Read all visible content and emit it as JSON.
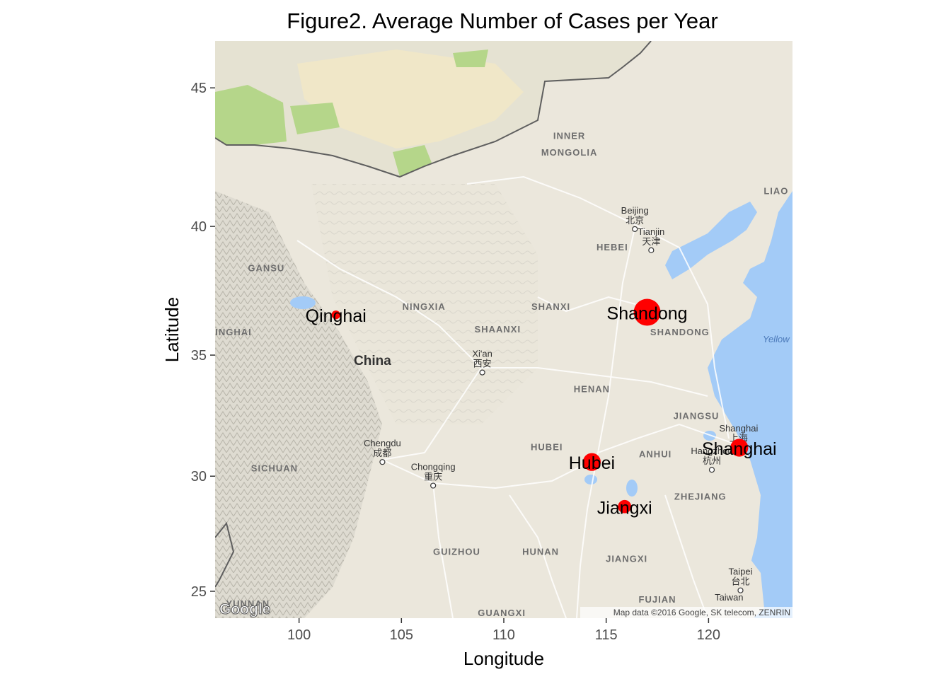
{
  "figure": {
    "title": "Figure2. Average Number of Cases per Year",
    "x_axis_title": "Longitude",
    "y_axis_title": "Latitude"
  },
  "map": {
    "lon_range": [
      95.9,
      124.1
    ],
    "lat_range": [
      23.8,
      46.6
    ],
    "x_ticks": [
      100,
      105,
      110,
      115,
      120
    ],
    "y_ticks": [
      25,
      30,
      35,
      40,
      45
    ],
    "attribution": "Map data ©2016 Google, SK telecom, ZENRIN",
    "logo_text": "Google",
    "country_label": "China",
    "sea_label": "Yellow",
    "colors": {
      "land": "#ebe7dc",
      "desert": "#f2e9c6",
      "green": "#b5d68a",
      "water": "#a3cbf7",
      "border": "#5f5f5f",
      "road": "#ffffff",
      "point": "#ff0000"
    },
    "region_labels": [
      {
        "text": "INNER",
        "lon": 113.2,
        "lat": 43.2
      },
      {
        "text": "MONGOLIA",
        "lon": 113.2,
        "lat": 42.6
      },
      {
        "text": "LIAO",
        "lon": 123.3,
        "lat": 41.2
      },
      {
        "text": "HEBEI",
        "lon": 115.3,
        "lat": 39.1
      },
      {
        "text": "GANSU",
        "lon": 98.4,
        "lat": 38.3
      },
      {
        "text": "NINGXIA",
        "lon": 106.1,
        "lat": 36.8
      },
      {
        "text": "SHANXI",
        "lon": 112.3,
        "lat": 36.8
      },
      {
        "text": "SHAANXI",
        "lon": 109.7,
        "lat": 35.9
      },
      {
        "text": "SHANDONG",
        "lon": 118.6,
        "lat": 35.8
      },
      {
        "text": "INGHAI",
        "lon": 96.8,
        "lat": 35.8
      },
      {
        "text": "HENAN",
        "lon": 114.3,
        "lat": 33.5
      },
      {
        "text": "JIANGSU",
        "lon": 119.4,
        "lat": 32.4
      },
      {
        "text": "HUBEI",
        "lon": 112.1,
        "lat": 31.1
      },
      {
        "text": "ANHUI",
        "lon": 117.4,
        "lat": 30.8
      },
      {
        "text": "SICHUAN",
        "lon": 98.8,
        "lat": 30.2
      },
      {
        "text": "ZHEJIANG",
        "lon": 119.6,
        "lat": 29.0
      },
      {
        "text": "GUIZHOU",
        "lon": 107.7,
        "lat": 26.6
      },
      {
        "text": "HUNAN",
        "lon": 111.8,
        "lat": 26.6
      },
      {
        "text": "JIANGXI",
        "lon": 116.0,
        "lat": 26.3
      },
      {
        "text": "FUJIAN",
        "lon": 117.5,
        "lat": 24.5
      },
      {
        "text": "YUNNAN",
        "lon": 97.5,
        "lat": 24.3
      },
      {
        "text": "GUANGXI",
        "lon": 109.9,
        "lat": 23.9
      }
    ],
    "cities": [
      {
        "name": "Beijing",
        "cjk": "北京",
        "lon": 116.4,
        "lat": 39.9
      },
      {
        "name": "Tianjin",
        "cjk": "天津",
        "lon": 117.2,
        "lat": 39.1
      },
      {
        "name": "Xi'an",
        "cjk": "西安",
        "lon": 108.95,
        "lat": 34.3
      },
      {
        "name": "Chengdu",
        "cjk": "成都",
        "lon": 104.07,
        "lat": 30.6
      },
      {
        "name": "Chongqing",
        "cjk": "重庆",
        "lon": 106.55,
        "lat": 29.6
      },
      {
        "name": "Shanghai",
        "cjk": "上海",
        "lon": 121.47,
        "lat": 31.23
      },
      {
        "name": "Hangzhou",
        "cjk": "杭州",
        "lon": 120.16,
        "lat": 30.27
      },
      {
        "name": "Taipei",
        "cjk": "台北",
        "lon": 121.56,
        "lat": 25.04
      },
      {
        "name": "Taiwan",
        "cjk": "",
        "lon": 121.0,
        "lat": 23.9
      }
    ]
  },
  "chart_data": {
    "type": "scatter",
    "title": "Figure2. Average Number of Cases per Year",
    "xlabel": "Longitude",
    "ylabel": "Latitude",
    "xlim": [
      95.9,
      124.1
    ],
    "ylim": [
      23.8,
      46.6
    ],
    "points": [
      {
        "name": "Qinghai",
        "lon": 101.8,
        "lat": 36.6,
        "size": 1
      },
      {
        "name": "Shandong",
        "lon": 117.0,
        "lat": 36.7,
        "size": 5
      },
      {
        "name": "Shanghai",
        "lon": 121.5,
        "lat": 31.2,
        "size": 3
      },
      {
        "name": "Hubei",
        "lon": 114.3,
        "lat": 30.6,
        "size": 3
      },
      {
        "name": "Jiangxi",
        "lon": 115.9,
        "lat": 28.7,
        "size": 2
      }
    ]
  }
}
